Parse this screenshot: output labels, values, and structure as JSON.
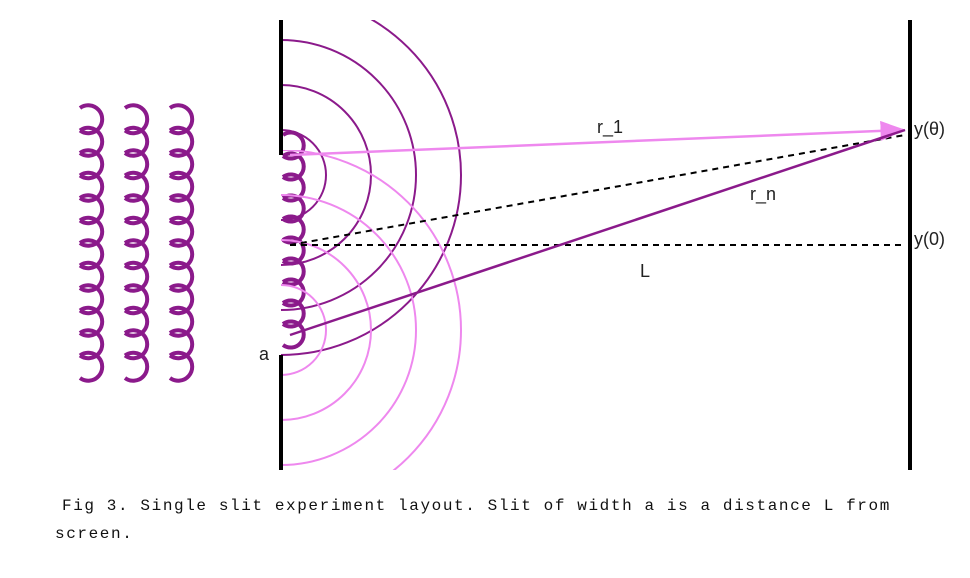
{
  "labels": {
    "r_1": "r_1",
    "r_n": "r_n",
    "distance": "L",
    "slit_width": "a",
    "y_theta": "y(θ)",
    "y_zero": "y(0)"
  },
  "caption": "Fig 3. Single slit experiment layout. Slit of width a is a distance L from screen."
}
